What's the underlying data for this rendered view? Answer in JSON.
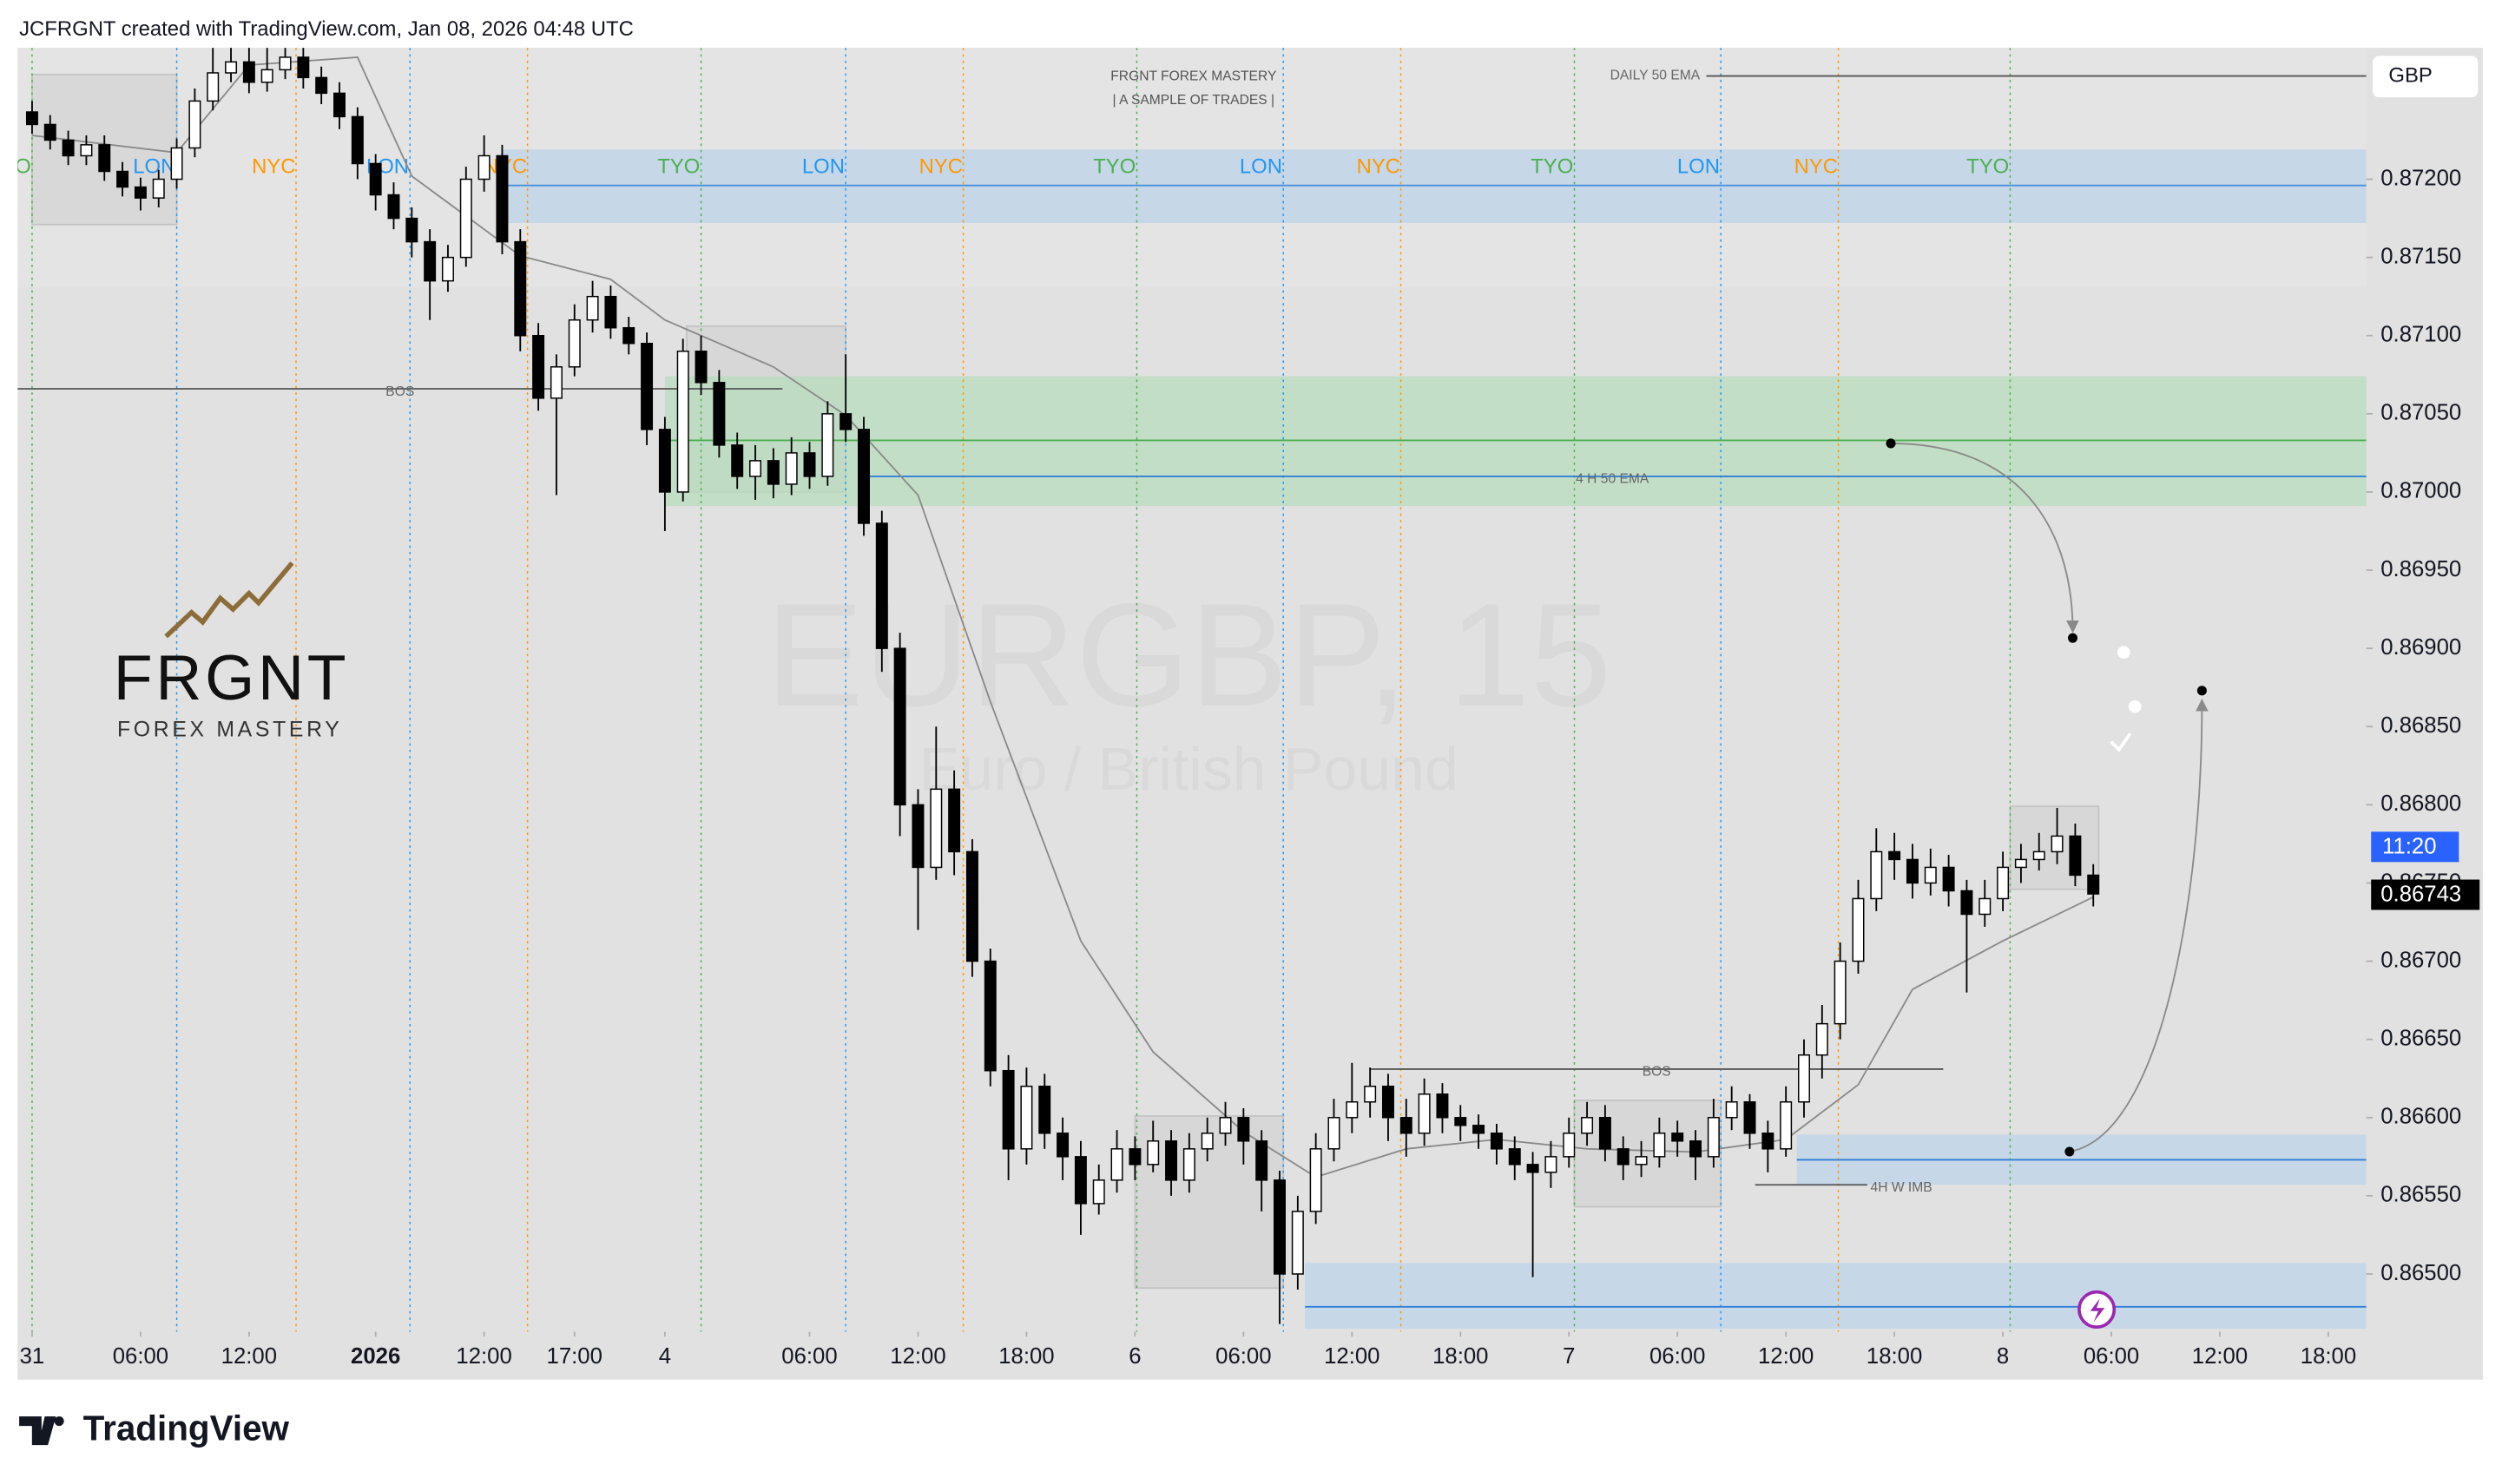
{
  "header": {
    "attribution": "JCFRGNT created with TradingView.com, Jan 08, 2026 04:48 UTC"
  },
  "currency_button": "GBP",
  "footer": {
    "brand": "TradingView"
  },
  "logo": {
    "name": "FRGNT",
    "tagline": "FOREX MASTERY"
  },
  "banner": {
    "title": "FRGNT FOREX MASTERY",
    "subtitle": "|  A SAMPLE OF TRADES |"
  },
  "watermark": {
    "symbol": "EURGBP, 15",
    "description": "Euro / British Pound"
  },
  "chart_data": {
    "type": "candlestick",
    "up_color": "#ffffff",
    "down_color": "#000000",
    "x": [
      0,
      1,
      2,
      3,
      4,
      5,
      6,
      7,
      8,
      9,
      10,
      11,
      12,
      13,
      14,
      15,
      16,
      17,
      18,
      19,
      20,
      21,
      22,
      23,
      24,
      25,
      26,
      27,
      28,
      29,
      30,
      31,
      32,
      33,
      34,
      35,
      36,
      37,
      38,
      39,
      40,
      41,
      42,
      43,
      44,
      45,
      46,
      47,
      48,
      49,
      50,
      51,
      52,
      53,
      54,
      55,
      56,
      57,
      58,
      59,
      60,
      61,
      62,
      63,
      64,
      65,
      66,
      67,
      68,
      69,
      70,
      71,
      72,
      73,
      74,
      75,
      76,
      77,
      78,
      79,
      80,
      81,
      82,
      83,
      84,
      85,
      86,
      87,
      88,
      89,
      90,
      91,
      92,
      93,
      94,
      95,
      96,
      97,
      98,
      99,
      100,
      101,
      102,
      103,
      104,
      105,
      106,
      107,
      108,
      109,
      110,
      111,
      112,
      113,
      114
    ],
    "open": [
      0.87243,
      0.87235,
      0.87225,
      0.87215,
      0.87222,
      0.87205,
      0.87195,
      0.87188,
      0.872,
      0.8722,
      0.8725,
      0.87268,
      0.87275,
      0.87262,
      0.8727,
      0.87278,
      0.87265,
      0.87255,
      0.8724,
      0.8721,
      0.8719,
      0.87175,
      0.8716,
      0.87135,
      0.8715,
      0.872,
      0.87215,
      0.8716,
      0.871,
      0.8706,
      0.8708,
      0.8711,
      0.87125,
      0.87105,
      0.87095,
      0.8704,
      0.87,
      0.8709,
      0.8707,
      0.8703,
      0.8701,
      0.8702,
      0.87005,
      0.87025,
      0.8701,
      0.8705,
      0.8704,
      0.8698,
      0.869,
      0.868,
      0.8676,
      0.8681,
      0.8677,
      0.867,
      0.8663,
      0.8658,
      0.8662,
      0.8659,
      0.86575,
      0.86545,
      0.8656,
      0.8658,
      0.8657,
      0.86585,
      0.8656,
      0.8658,
      0.8659,
      0.866,
      0.86585,
      0.8656,
      0.865,
      0.8654,
      0.8658,
      0.866,
      0.8661,
      0.8662,
      0.866,
      0.8659,
      0.86615,
      0.866,
      0.86595,
      0.8659,
      0.8658,
      0.8657,
      0.86565,
      0.86575,
      0.8659,
      0.866,
      0.8658,
      0.8657,
      0.86575,
      0.8659,
      0.86585,
      0.86575,
      0.866,
      0.8661,
      0.8659,
      0.8658,
      0.8661,
      0.8664,
      0.8666,
      0.867,
      0.8674,
      0.8677,
      0.86765,
      0.8675,
      0.8676,
      0.86745,
      0.8673,
      0.8674,
      0.8676,
      0.86765,
      0.8677,
      0.8678,
      0.86755
    ],
    "high": [
      0.8725,
      0.87241,
      0.87231,
      0.87228,
      0.87228,
      0.87211,
      0.87201,
      0.87206,
      0.87226,
      0.87258,
      0.8729,
      0.87295,
      0.87288,
      0.87285,
      0.87292,
      0.87286,
      0.87272,
      0.87262,
      0.87246,
      0.87216,
      0.87198,
      0.87182,
      0.87168,
      0.87158,
      0.87208,
      0.87228,
      0.87222,
      0.87168,
      0.87108,
      0.87088,
      0.8712,
      0.87135,
      0.87132,
      0.87112,
      0.87102,
      0.87048,
      0.87098,
      0.871,
      0.87078,
      0.87038,
      0.8703,
      0.87028,
      0.87035,
      0.87032,
      0.87058,
      0.87088,
      0.87048,
      0.86988,
      0.8691,
      0.8681,
      0.8685,
      0.86822,
      0.86778,
      0.86708,
      0.8664,
      0.86632,
      0.86628,
      0.866,
      0.86585,
      0.8657,
      0.86592,
      0.86588,
      0.86598,
      0.86592,
      0.8659,
      0.866,
      0.8661,
      0.86606,
      0.86592,
      0.86566,
      0.8655,
      0.8659,
      0.86612,
      0.86635,
      0.86632,
      0.86628,
      0.86612,
      0.86625,
      0.86622,
      0.86608,
      0.86602,
      0.86596,
      0.86588,
      0.86578,
      0.86585,
      0.866,
      0.8661,
      0.86608,
      0.86588,
      0.86585,
      0.866,
      0.86598,
      0.86592,
      0.86612,
      0.8662,
      0.86615,
      0.86598,
      0.8662,
      0.8665,
      0.86672,
      0.86712,
      0.86752,
      0.86785,
      0.86782,
      0.86775,
      0.86772,
      0.86768,
      0.86752,
      0.86752,
      0.8677,
      0.86775,
      0.86782,
      0.86798,
      0.86788,
      0.86762
    ],
    "low": [
      0.87229,
      0.87219,
      0.87209,
      0.87209,
      0.87199,
      0.87189,
      0.8718,
      0.87182,
      0.87194,
      0.87214,
      0.87244,
      0.87262,
      0.87255,
      0.87256,
      0.87264,
      0.87258,
      0.87248,
      0.87232,
      0.872,
      0.8718,
      0.87168,
      0.8715,
      0.8711,
      0.87128,
      0.87144,
      0.87192,
      0.87152,
      0.8709,
      0.87052,
      0.86998,
      0.87074,
      0.87102,
      0.87098,
      0.87088,
      0.8703,
      0.86975,
      0.86994,
      0.87062,
      0.87022,
      0.87002,
      0.86995,
      0.86996,
      0.86998,
      0.87002,
      0.87004,
      0.87032,
      0.86972,
      0.86885,
      0.8678,
      0.8672,
      0.86752,
      0.86755,
      0.8669,
      0.8662,
      0.8656,
      0.8657,
      0.8658,
      0.8656,
      0.86525,
      0.86538,
      0.86552,
      0.8656,
      0.86565,
      0.8655,
      0.86552,
      0.86572,
      0.86582,
      0.8657,
      0.8654,
      0.86468,
      0.8649,
      0.86532,
      0.86572,
      0.8659,
      0.866,
      0.86585,
      0.86575,
      0.86582,
      0.8659,
      0.86585,
      0.8658,
      0.8657,
      0.8656,
      0.86498,
      0.86555,
      0.86568,
      0.86582,
      0.86572,
      0.8656,
      0.86562,
      0.86568,
      0.86575,
      0.8656,
      0.86568,
      0.86592,
      0.8658,
      0.86565,
      0.86575,
      0.866,
      0.86625,
      0.8665,
      0.86692,
      0.86732,
      0.86752,
      0.8674,
      0.86742,
      0.86735,
      0.8668,
      0.86722,
      0.86732,
      0.8675,
      0.86758,
      0.86762,
      0.86748,
      0.86735
    ],
    "close": [
      0.87235,
      0.87225,
      0.87215,
      0.87222,
      0.87205,
      0.87195,
      0.87188,
      0.872,
      0.8722,
      0.8725,
      0.87268,
      0.87275,
      0.87262,
      0.8727,
      0.87278,
      0.87265,
      0.87255,
      0.8724,
      0.8721,
      0.8719,
      0.87175,
      0.8716,
      0.87135,
      0.8715,
      0.872,
      0.87215,
      0.8716,
      0.871,
      0.8706,
      0.8708,
      0.8711,
      0.87125,
      0.87105,
      0.87095,
      0.8704,
      0.87,
      0.8709,
      0.8707,
      0.8703,
      0.8701,
      0.8702,
      0.87005,
      0.87025,
      0.8701,
      0.8705,
      0.8704,
      0.8698,
      0.869,
      0.868,
      0.8676,
      0.8681,
      0.8677,
      0.867,
      0.8663,
      0.8658,
      0.8662,
      0.8659,
      0.86575,
      0.86545,
      0.8656,
      0.8658,
      0.8657,
      0.86585,
      0.8656,
      0.8658,
      0.8659,
      0.866,
      0.86585,
      0.8656,
      0.865,
      0.8654,
      0.8658,
      0.866,
      0.8661,
      0.8662,
      0.866,
      0.8659,
      0.86615,
      0.866,
      0.86595,
      0.8659,
      0.8658,
      0.8657,
      0.86565,
      0.86575,
      0.8659,
      0.866,
      0.8658,
      0.8657,
      0.86575,
      0.8659,
      0.86585,
      0.86575,
      0.866,
      0.8661,
      0.8659,
      0.8658,
      0.8661,
      0.8664,
      0.8666,
      0.867,
      0.8674,
      0.8677,
      0.86765,
      0.8675,
      0.8676,
      0.86745,
      0.8673,
      0.8674,
      0.8676,
      0.86765,
      0.8677,
      0.8678,
      0.86755,
      0.86743
    ],
    "ema": {
      "color": "#8a8a8a",
      "x": [
        0,
        8,
        12,
        18,
        21,
        27,
        32,
        35,
        41,
        45,
        49,
        53,
        58,
        62,
        67,
        71,
        76,
        81,
        86,
        92,
        97,
        101,
        104,
        109,
        114
      ],
      "values": [
        0.87228,
        0.87217,
        0.87273,
        0.87278,
        0.87202,
        0.87151,
        0.87136,
        0.8711,
        0.8708,
        0.87049,
        0.86998,
        0.86866,
        0.86713,
        0.86642,
        0.86591,
        0.86562,
        0.8658,
        0.86586,
        0.8658,
        0.86578,
        0.86586,
        0.86621,
        0.86682,
        0.86713,
        0.86741
      ]
    },
    "xlim": [
      -0.8,
      129.1
    ],
    "ylim": [
      0.86463,
      0.87284
    ],
    "grid": false,
    "xticks": [
      {
        "value": 0,
        "label": "31"
      },
      {
        "value": 6,
        "label": "06:00"
      },
      {
        "value": 12,
        "label": "12:00"
      },
      {
        "value": 19,
        "label": "2026",
        "bold": true
      },
      {
        "value": 25,
        "label": "12:00"
      },
      {
        "value": 30,
        "label": "17:00"
      },
      {
        "value": 35,
        "label": "4"
      },
      {
        "value": 43,
        "label": "06:00"
      },
      {
        "value": 49,
        "label": "12:00"
      },
      {
        "value": 55,
        "label": "18:00"
      },
      {
        "value": 61,
        "label": "6"
      },
      {
        "value": 67,
        "label": "06:00"
      },
      {
        "value": 73,
        "label": "12:00"
      },
      {
        "value": 79,
        "label": "18:00"
      },
      {
        "value": 85,
        "label": "7"
      },
      {
        "value": 91,
        "label": "06:00"
      },
      {
        "value": 97,
        "label": "12:00"
      },
      {
        "value": 103,
        "label": "18:00"
      },
      {
        "value": 109,
        "label": "8"
      },
      {
        "value": 115,
        "label": "06:00"
      },
      {
        "value": 121,
        "label": "12:00"
      },
      {
        "value": 127,
        "label": "18:00"
      }
    ],
    "yticks": [
      {
        "value": 0.865,
        "label": "0.86500"
      },
      {
        "value": 0.8655,
        "label": "0.86550"
      },
      {
        "value": 0.866,
        "label": "0.86600"
      },
      {
        "value": 0.8665,
        "label": "0.86650"
      },
      {
        "value": 0.867,
        "label": "0.86700"
      },
      {
        "value": 0.8675,
        "label": "0.86750"
      },
      {
        "value": 0.868,
        "label": "0.86800"
      },
      {
        "value": 0.8685,
        "label": "0.86850"
      },
      {
        "value": 0.869,
        "label": "0.86900"
      },
      {
        "value": 0.8695,
        "label": "0.86950"
      },
      {
        "value": 0.87,
        "label": "0.87000"
      },
      {
        "value": 0.8705,
        "label": "0.87050"
      },
      {
        "value": 0.871,
        "label": "0.87100"
      },
      {
        "value": 0.8715,
        "label": "0.87150"
      },
      {
        "value": 0.872,
        "label": "0.87200"
      }
    ],
    "sessions": [
      {
        "label": "TYO",
        "x": 0,
        "color": "#4caf50"
      },
      {
        "label": "LON",
        "x": 8,
        "color": "#2196f3"
      },
      {
        "label": "NYC",
        "x": 14.6,
        "color": "#ff9800"
      },
      {
        "label": "LON",
        "x": 20.9,
        "color": "#2196f3"
      },
      {
        "label": "NYC",
        "x": 27.4,
        "color": "#ff9800"
      },
      {
        "label": "TYO",
        "x": 37,
        "color": "#4caf50"
      },
      {
        "label": "LON",
        "x": 45,
        "color": "#2196f3"
      },
      {
        "label": "NYC",
        "x": 51.5,
        "color": "#ff9800"
      },
      {
        "label": "TYO",
        "x": 61.1,
        "color": "#4caf50"
      },
      {
        "label": "LON",
        "x": 69.2,
        "color": "#2196f3"
      },
      {
        "label": "NYC",
        "x": 75.7,
        "color": "#ff9800"
      },
      {
        "label": "TYO",
        "x": 85.3,
        "color": "#4caf50"
      },
      {
        "label": "LON",
        "x": 93.4,
        "color": "#2196f3"
      },
      {
        "label": "NYC",
        "x": 99.9,
        "color": "#ff9800"
      },
      {
        "label": "TYO",
        "x": 109.4,
        "color": "#4caf50"
      }
    ],
    "zones": [
      {
        "x": [
          26,
          129.1
        ],
        "y": [
          0.87172,
          0.87219
        ],
        "color": "#bcd3ea"
      },
      {
        "x": [
          35,
          129.1
        ],
        "y": [
          0.86991,
          0.87074
        ],
        "color": "#b8dcbc"
      },
      {
        "x": [
          97.6,
          129.1
        ],
        "y": [
          0.86557,
          0.86589
        ],
        "color": "#bcd3ea"
      },
      {
        "x": [
          70.4,
          129.1
        ],
        "y": [
          0.86465,
          0.86507
        ],
        "color": "#bcd3ea"
      }
    ],
    "boxes": [
      {
        "x": [
          0,
          8
        ],
        "y": [
          0.87171,
          0.87267
        ]
      },
      {
        "x": [
          36.2,
          45
        ],
        "y": [
          0.87,
          0.87106
        ]
      },
      {
        "x": [
          61,
          69.2
        ],
        "y": [
          0.86491,
          0.86601
        ]
      },
      {
        "x": [
          85.3,
          93.4
        ],
        "y": [
          0.86543,
          0.86611
        ]
      },
      {
        "x": [
          109.4,
          114.3
        ],
        "y": [
          0.86746,
          0.86799
        ]
      }
    ],
    "levels": [
      {
        "price": 0.87066,
        "x": [
          -0.8,
          41.5
        ],
        "color": "#555555",
        "label": "BOS"
      },
      {
        "price": 0.86631,
        "x": [
          74,
          105.7
        ],
        "color": "#555555",
        "label": "BOS"
      },
      {
        "price": 0.87266,
        "x": [
          92.6,
          129.1
        ],
        "color": "#555555",
        "label": "DAILY 50 EMA",
        "label_side": "left"
      },
      {
        "price": 0.87196,
        "x": [
          26,
          129.1
        ],
        "color": "#4a8fd8"
      },
      {
        "price": 0.87033,
        "x": [
          35,
          129.1
        ],
        "color": "#4caf50"
      },
      {
        "price": 0.8701,
        "x": [
          45.7,
          129.1
        ],
        "color": "#2f7fd6",
        "label": "4 H 50 EMA"
      },
      {
        "price": 0.86573,
        "x": [
          97.6,
          129.1
        ],
        "color": "#2f7fd6"
      },
      {
        "price": 0.86557,
        "x": [
          95.3,
          101.5
        ],
        "color": "#555555",
        "label": "4H W IMB",
        "label_side": "right"
      },
      {
        "price": 0.86479,
        "x": [
          70.4,
          129.1
        ],
        "color": "#2f7fd6"
      }
    ],
    "last_price": 0.86743,
    "countdown": "11:20"
  }
}
